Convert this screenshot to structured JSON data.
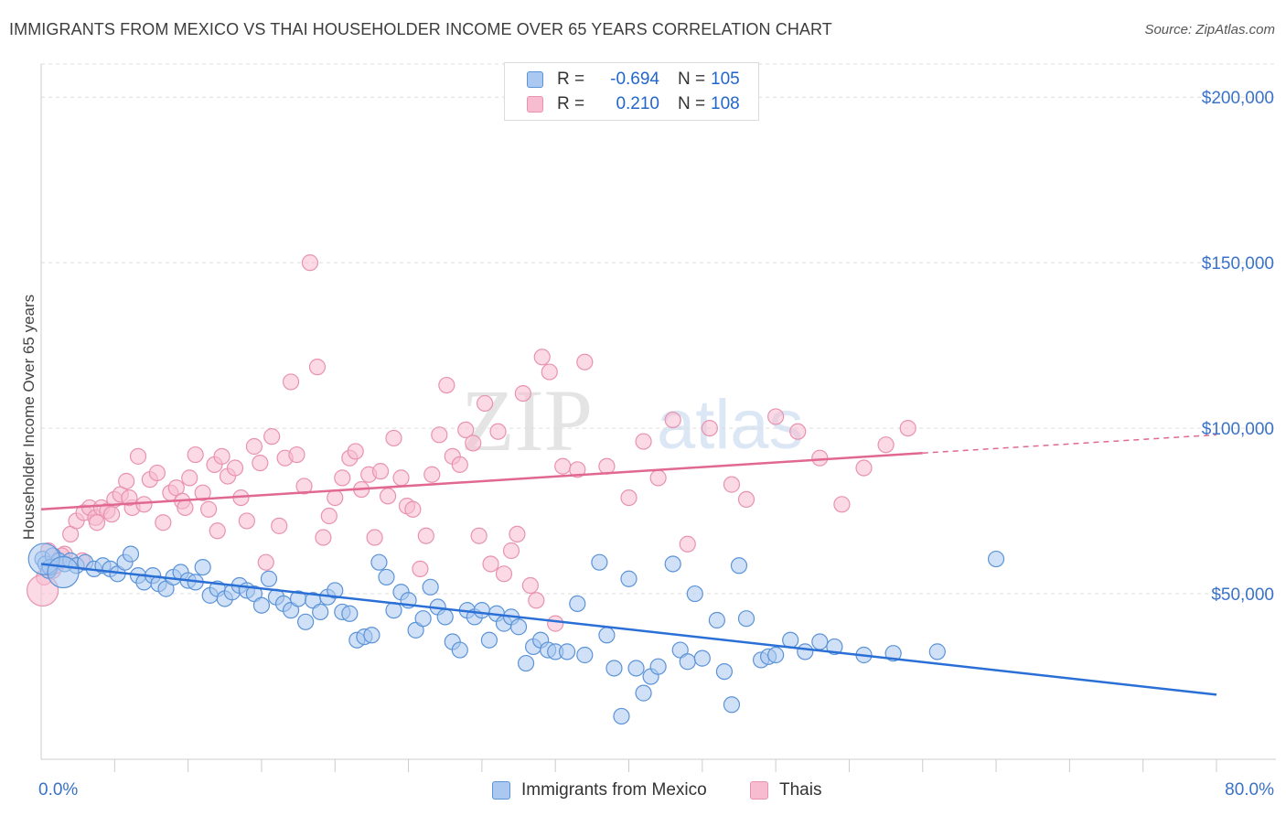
{
  "title": "IMMIGRANTS FROM MEXICO VS THAI HOUSEHOLDER INCOME OVER 65 YEARS CORRELATION CHART",
  "source": "Source: ZipAtlas.com",
  "watermark": {
    "zip": "ZIP",
    "atlas": "atlas"
  },
  "legend": {
    "mexico": {
      "r_label": "R =",
      "r_value": "-0.694",
      "n_label": "N =",
      "n_value": "105"
    },
    "thai": {
      "r_label": "R =",
      "r_value": "0.210",
      "n_label": "N =",
      "n_value": "108"
    }
  },
  "colors": {
    "mexico_fill": "#aac8f0",
    "mexico_stroke": "#5b93d8",
    "mexico_line": "#2a6fd6",
    "thai_fill": "#f7bcd0",
    "thai_stroke": "#e892b0",
    "thai_line": "#e06892",
    "axis_text": "#3a72c8",
    "grid": "#dddddd"
  },
  "chart_data": {
    "type": "scatter",
    "title": "IMMIGRANTS FROM MEXICO VS THAI HOUSEHOLDER INCOME OVER 65 YEARS CORRELATION CHART",
    "xlabel": "",
    "ylabel": "Householder Income Over 65 years",
    "xlim": [
      0,
      80
    ],
    "ylim": [
      0,
      210000
    ],
    "x_tick_labels": [
      "0.0%",
      "80.0%"
    ],
    "y_ticks": [
      50000,
      100000,
      150000,
      200000
    ],
    "y_tick_labels": [
      "$50,000",
      "$100,000",
      "$150,000",
      "$200,000"
    ],
    "grid": true,
    "legend_position": "top-center",
    "series": [
      {
        "name": "Immigrants from Mexico",
        "trend": {
          "x": [
            0,
            80
          ],
          "y": [
            59000,
            19500
          ]
        },
        "points": [
          [
            0.1,
            60500
          ],
          [
            0.3,
            59000
          ],
          [
            0.5,
            57000
          ],
          [
            0.8,
            61500
          ],
          [
            1.2,
            60000
          ],
          [
            1.6,
            59000
          ],
          [
            2.0,
            60000
          ],
          [
            2.4,
            58500
          ],
          [
            3.0,
            59500
          ],
          [
            3.6,
            57500
          ],
          [
            4.2,
            58500
          ],
          [
            4.7,
            57500
          ],
          [
            5.2,
            56000
          ],
          [
            5.7,
            59500
          ],
          [
            6.1,
            62000
          ],
          [
            6.6,
            55500
          ],
          [
            7.0,
            53500
          ],
          [
            7.6,
            55500
          ],
          [
            8.0,
            53000
          ],
          [
            8.5,
            51500
          ],
          [
            9.0,
            55000
          ],
          [
            9.5,
            56500
          ],
          [
            10.0,
            54000
          ],
          [
            10.5,
            53500
          ],
          [
            11.0,
            58000
          ],
          [
            11.5,
            49500
          ],
          [
            12.0,
            51500
          ],
          [
            12.5,
            48500
          ],
          [
            13.0,
            50500
          ],
          [
            13.5,
            52500
          ],
          [
            14.0,
            51000
          ],
          [
            14.5,
            50000
          ],
          [
            15.0,
            46500
          ],
          [
            15.5,
            54500
          ],
          [
            16.0,
            49000
          ],
          [
            16.5,
            47000
          ],
          [
            17.0,
            45000
          ],
          [
            17.5,
            48500
          ],
          [
            18.0,
            41500
          ],
          [
            18.5,
            48000
          ],
          [
            19.0,
            44500
          ],
          [
            19.5,
            49000
          ],
          [
            20.0,
            51000
          ],
          [
            20.5,
            44500
          ],
          [
            21.0,
            44000
          ],
          [
            21.5,
            36000
          ],
          [
            22.0,
            37000
          ],
          [
            22.5,
            37500
          ],
          [
            23.0,
            59500
          ],
          [
            23.5,
            55000
          ],
          [
            24.0,
            45000
          ],
          [
            24.5,
            50500
          ],
          [
            25.0,
            48000
          ],
          [
            25.5,
            39000
          ],
          [
            26.0,
            42500
          ],
          [
            26.5,
            52000
          ],
          [
            27.0,
            46000
          ],
          [
            27.5,
            43000
          ],
          [
            28.0,
            35500
          ],
          [
            28.5,
            33000
          ],
          [
            29.0,
            45000
          ],
          [
            29.5,
            43000
          ],
          [
            30.0,
            45000
          ],
          [
            30.5,
            36000
          ],
          [
            31.0,
            44000
          ],
          [
            31.5,
            41000
          ],
          [
            32.0,
            43000
          ],
          [
            32.5,
            40000
          ],
          [
            33.0,
            29000
          ],
          [
            33.5,
            34000
          ],
          [
            34.0,
            36000
          ],
          [
            34.5,
            33000
          ],
          [
            35.0,
            32500
          ],
          [
            35.8,
            32500
          ],
          [
            36.5,
            47000
          ],
          [
            37.0,
            31500
          ],
          [
            38.0,
            59500
          ],
          [
            38.5,
            37500
          ],
          [
            39.0,
            27500
          ],
          [
            39.5,
            13000
          ],
          [
            40.0,
            54500
          ],
          [
            40.5,
            27500
          ],
          [
            41.0,
            20000
          ],
          [
            41.5,
            25000
          ],
          [
            42.0,
            28000
          ],
          [
            43.0,
            59000
          ],
          [
            43.5,
            33000
          ],
          [
            44.0,
            29500
          ],
          [
            44.5,
            50000
          ],
          [
            45.0,
            30500
          ],
          [
            46.0,
            42000
          ],
          [
            46.5,
            26500
          ],
          [
            47.0,
            16500
          ],
          [
            47.5,
            58500
          ],
          [
            48.0,
            42500
          ],
          [
            49.0,
            30000
          ],
          [
            49.5,
            31000
          ],
          [
            50.0,
            31500
          ],
          [
            51.0,
            36000
          ],
          [
            52.0,
            32500
          ],
          [
            53.0,
            35500
          ],
          [
            54.0,
            34000
          ],
          [
            56.0,
            31500
          ],
          [
            58.0,
            32000
          ],
          [
            61.0,
            32500
          ],
          [
            65.0,
            60500
          ],
          [
            0.6,
            58000
          ]
        ],
        "bubble_points": [
          [
            0.2,
            60500
          ],
          [
            1.5,
            56500
          ]
        ]
      },
      {
        "name": "Thais",
        "trend": {
          "x": [
            0,
            60
          ],
          "y": [
            75500,
            92500
          ]
        },
        "trend_dashed": {
          "x": [
            60,
            80
          ],
          "y": [
            92500,
            98000
          ]
        },
        "points": [
          [
            0.2,
            55000
          ],
          [
            0.8,
            57000
          ],
          [
            1.2,
            60000
          ],
          [
            1.6,
            62000
          ],
          [
            2.0,
            68000
          ],
          [
            2.4,
            72000
          ],
          [
            2.9,
            74500
          ],
          [
            3.3,
            76000
          ],
          [
            3.7,
            73000
          ],
          [
            4.1,
            76000
          ],
          [
            4.5,
            75000
          ],
          [
            5.0,
            78500
          ],
          [
            5.4,
            80000
          ],
          [
            5.8,
            84000
          ],
          [
            6.2,
            76000
          ],
          [
            6.6,
            91500
          ],
          [
            7.0,
            77000
          ],
          [
            7.4,
            84500
          ],
          [
            7.9,
            86500
          ],
          [
            8.3,
            71500
          ],
          [
            8.8,
            80500
          ],
          [
            9.2,
            82000
          ],
          [
            9.6,
            78000
          ],
          [
            10.1,
            85000
          ],
          [
            10.5,
            92000
          ],
          [
            11.0,
            80500
          ],
          [
            11.4,
            75500
          ],
          [
            11.8,
            89000
          ],
          [
            12.3,
            91500
          ],
          [
            12.7,
            85500
          ],
          [
            13.2,
            88000
          ],
          [
            13.6,
            79000
          ],
          [
            14.0,
            72000
          ],
          [
            14.5,
            94500
          ],
          [
            14.9,
            89500
          ],
          [
            15.3,
            59500
          ],
          [
            15.7,
            97500
          ],
          [
            16.2,
            70500
          ],
          [
            16.6,
            91000
          ],
          [
            17.0,
            114000
          ],
          [
            17.4,
            92000
          ],
          [
            17.9,
            82500
          ],
          [
            18.3,
            150000
          ],
          [
            18.8,
            118500
          ],
          [
            19.2,
            67000
          ],
          [
            19.6,
            73500
          ],
          [
            20.0,
            79000
          ],
          [
            20.5,
            85000
          ],
          [
            21.0,
            91000
          ],
          [
            21.4,
            93000
          ],
          [
            21.8,
            81500
          ],
          [
            22.3,
            86000
          ],
          [
            22.7,
            67000
          ],
          [
            23.1,
            87000
          ],
          [
            23.6,
            79500
          ],
          [
            24.0,
            97000
          ],
          [
            24.5,
            85000
          ],
          [
            24.9,
            76500
          ],
          [
            25.3,
            75500
          ],
          [
            25.8,
            57500
          ],
          [
            26.2,
            67500
          ],
          [
            26.6,
            86000
          ],
          [
            27.1,
            98000
          ],
          [
            27.6,
            113000
          ],
          [
            28.0,
            91500
          ],
          [
            28.5,
            89000
          ],
          [
            28.9,
            99500
          ],
          [
            29.4,
            95500
          ],
          [
            29.8,
            67500
          ],
          [
            30.2,
            107500
          ],
          [
            30.6,
            59000
          ],
          [
            31.1,
            99000
          ],
          [
            31.5,
            56000
          ],
          [
            32.0,
            63000
          ],
          [
            32.4,
            68000
          ],
          [
            32.8,
            110500
          ],
          [
            33.3,
            52500
          ],
          [
            33.7,
            48000
          ],
          [
            34.1,
            121500
          ],
          [
            34.6,
            117000
          ],
          [
            35.0,
            41000
          ],
          [
            35.5,
            88500
          ],
          [
            36.5,
            87500
          ],
          [
            37.0,
            120000
          ],
          [
            38.5,
            88500
          ],
          [
            40.0,
            79000
          ],
          [
            41.0,
            96000
          ],
          [
            42.0,
            85000
          ],
          [
            43.0,
            102500
          ],
          [
            44.0,
            65000
          ],
          [
            45.5,
            100000
          ],
          [
            47.0,
            83000
          ],
          [
            48.0,
            78500
          ],
          [
            50.0,
            103500
          ],
          [
            51.5,
            99000
          ],
          [
            53.0,
            91000
          ],
          [
            54.5,
            77000
          ],
          [
            56.0,
            88000
          ],
          [
            57.5,
            95000
          ],
          [
            59.0,
            100000
          ],
          [
            0.5,
            63000
          ],
          [
            1.0,
            58500
          ],
          [
            1.4,
            61500
          ],
          [
            2.8,
            60000
          ],
          [
            3.8,
            71500
          ],
          [
            4.8,
            74000
          ],
          [
            6.0,
            79000
          ],
          [
            9.8,
            76000
          ],
          [
            12.0,
            69000
          ]
        ],
        "bubble_points": [
          [
            0.1,
            51000
          ]
        ]
      }
    ]
  },
  "bottom_legend": {
    "mexico_label": "Immigrants from Mexico",
    "thai_label": "Thais"
  }
}
